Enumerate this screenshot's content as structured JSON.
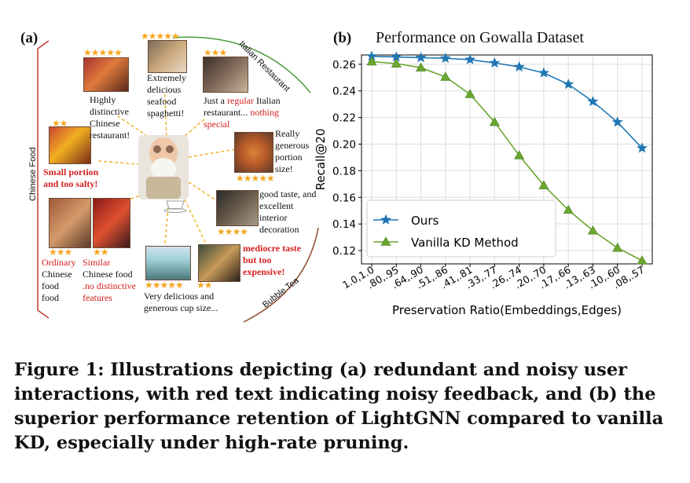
{
  "panel_a": {
    "label": "(a)",
    "categories": {
      "chinese_food": "Chinese Food",
      "italian_restaurant": "Italian Restaurant",
      "bubble_tea": "Bubble Tea"
    },
    "reviews": [
      {
        "stars": "★★★★★",
        "pre": "Highly distinctive Chinese restaurant!",
        "noisy": "",
        "post": ""
      },
      {
        "stars": "★★★★★",
        "pre": "Extremely delicious seafood spaghetti!",
        "noisy": "",
        "post": ""
      },
      {
        "stars": "★★★",
        "pre": "Just a ",
        "noisy": "regular",
        "post": " Italian restaurant..."
      },
      {
        "stars": "",
        "pre": "",
        "noisy": "nothing special",
        "post": ""
      },
      {
        "stars": "★★",
        "pre": "",
        "noisy": "Small portion and too salty!",
        "post": ""
      },
      {
        "stars": "★★★★★",
        "pre": "Really generous portion size!",
        "noisy": "",
        "post": ""
      },
      {
        "stars": "★★★★",
        "pre": "good taste, and excellent interior decoration",
        "noisy": "",
        "post": ""
      },
      {
        "stars": "★★★",
        "pre": "Chinese food",
        "noisy": "Ordinary",
        "post": ""
      },
      {
        "stars": "★★",
        "pre": "Chinese food",
        "noisy": "Similar",
        "post": ""
      },
      {
        "stars": "",
        "pre": "",
        "noisy": ".no distinctive features",
        "post": ""
      },
      {
        "stars": "★★★★★",
        "pre": "Very delicious and generous cup size...",
        "noisy": "",
        "post": ""
      },
      {
        "stars": "★★",
        "pre": "",
        "noisy": "mediocre taste but too expensive!",
        "post": ""
      }
    ]
  },
  "panel_b": {
    "label": "(b)",
    "title": "Performance on Gowalla Dataset"
  },
  "chart_data": {
    "type": "line",
    "title": "Performance on Gowalla Dataset",
    "xlabel": "Preservation Ratio(Embeddings,Edges)",
    "ylabel": "Recall@20",
    "categories": [
      "1.0,1.0",
      ".80,.95",
      ".64,.90",
      ".51,.86",
      ".41,.81",
      ".33,.77",
      ".26,.74",
      ".20,.70",
      ".17,.66",
      ".13,.63",
      ".10,.60",
      ".08,.57"
    ],
    "yticks": [
      "0.12",
      "0.14",
      "0.16",
      "0.18",
      "0.20",
      "0.22",
      "0.24",
      "0.26"
    ],
    "ylim": [
      0.11,
      0.267
    ],
    "grid": true,
    "legend": "bottom-left",
    "series": [
      {
        "name": "Ours",
        "marker": "star",
        "color": "#1f77b4",
        "values": [
          0.266,
          0.2655,
          0.265,
          0.2645,
          0.2635,
          0.261,
          0.258,
          0.2535,
          0.245,
          0.232,
          0.2165,
          0.197
        ]
      },
      {
        "name": "Vanilla KD Method",
        "marker": "triangle",
        "color": "#6aa72f",
        "values": [
          0.262,
          0.2605,
          0.2575,
          0.2505,
          0.2375,
          0.2165,
          0.1915,
          0.169,
          0.1505,
          0.135,
          0.122,
          0.1125
        ]
      }
    ]
  },
  "caption": {
    "text": "Figure 1: Illustrations depicting (a) redundant and noisy user interactions, with red text indicating noisy feedback, and (b) the superior performance retention of LightGNN compared to vanilla KD, especially under high-rate pruning."
  }
}
